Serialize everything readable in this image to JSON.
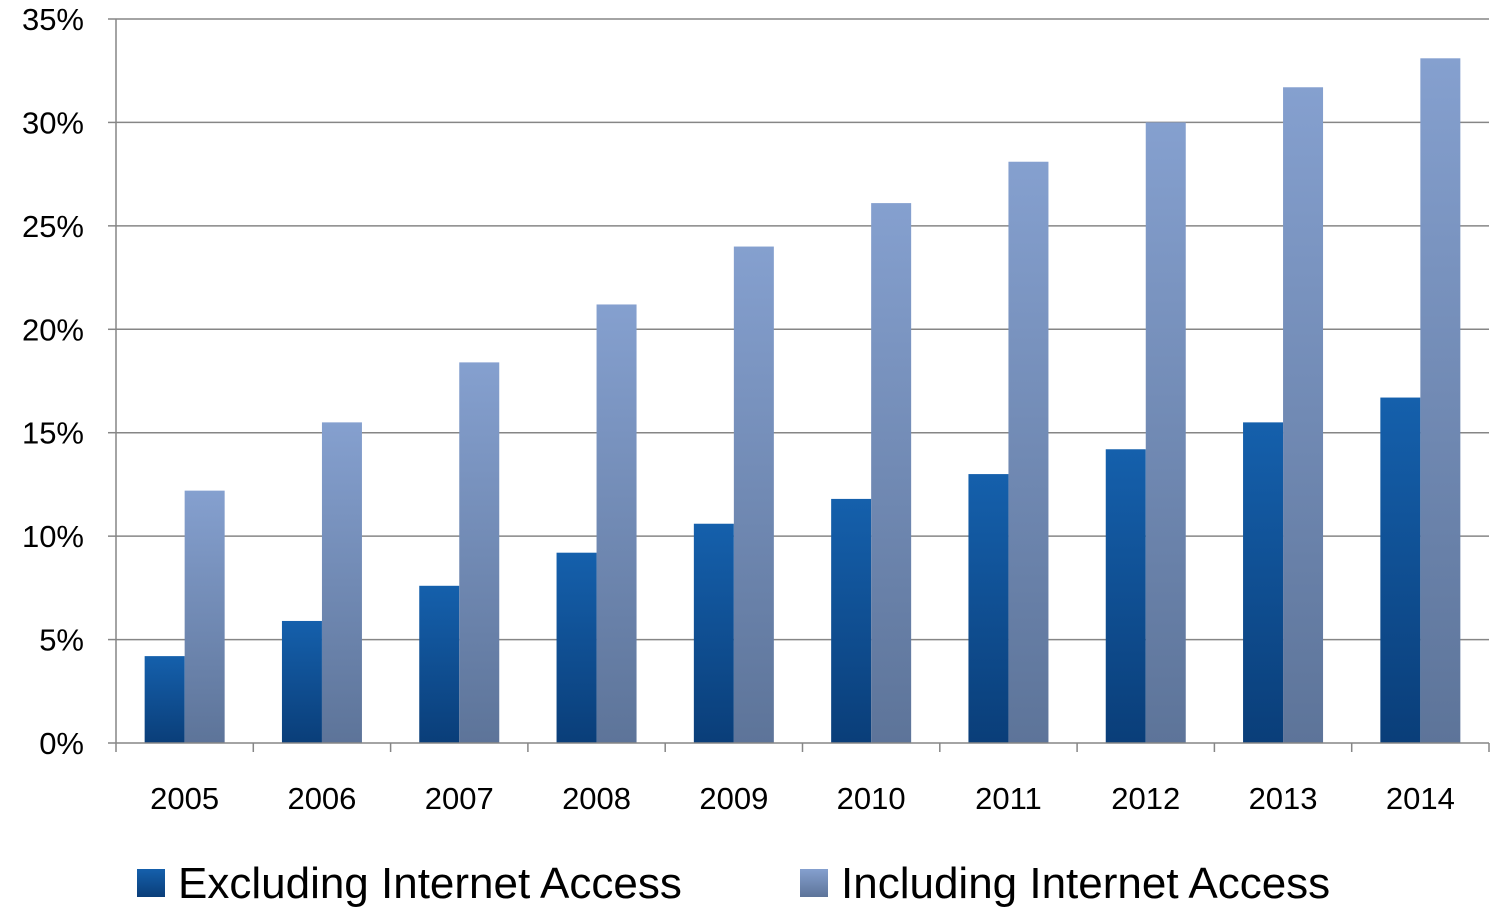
{
  "chart_data": {
    "type": "bar",
    "categories": [
      "2005",
      "2006",
      "2007",
      "2008",
      "2009",
      "2010",
      "2011",
      "2012",
      "2013",
      "2014"
    ],
    "series": [
      {
        "name": "Excluding Internet Access",
        "values": [
          4.2,
          5.9,
          7.6,
          9.2,
          10.6,
          11.8,
          13.0,
          14.2,
          15.5,
          16.7
        ],
        "color": "#11569F"
      },
      {
        "name": "Including Internet Access",
        "values": [
          12.2,
          15.5,
          18.4,
          21.2,
          24.0,
          26.1,
          28.1,
          30.0,
          31.7,
          33.1
        ],
        "color": "#7F9AC9"
      }
    ],
    "title": "",
    "xlabel": "",
    "ylabel": "",
    "ylim": [
      0,
      35
    ],
    "yticks": [
      0,
      5,
      10,
      15,
      20,
      25,
      30,
      35
    ],
    "ytick_labels": [
      "0%",
      "5%",
      "10%",
      "15%",
      "20%",
      "25%",
      "30%",
      "35%"
    ],
    "grid": true,
    "legend_position": "bottom"
  }
}
